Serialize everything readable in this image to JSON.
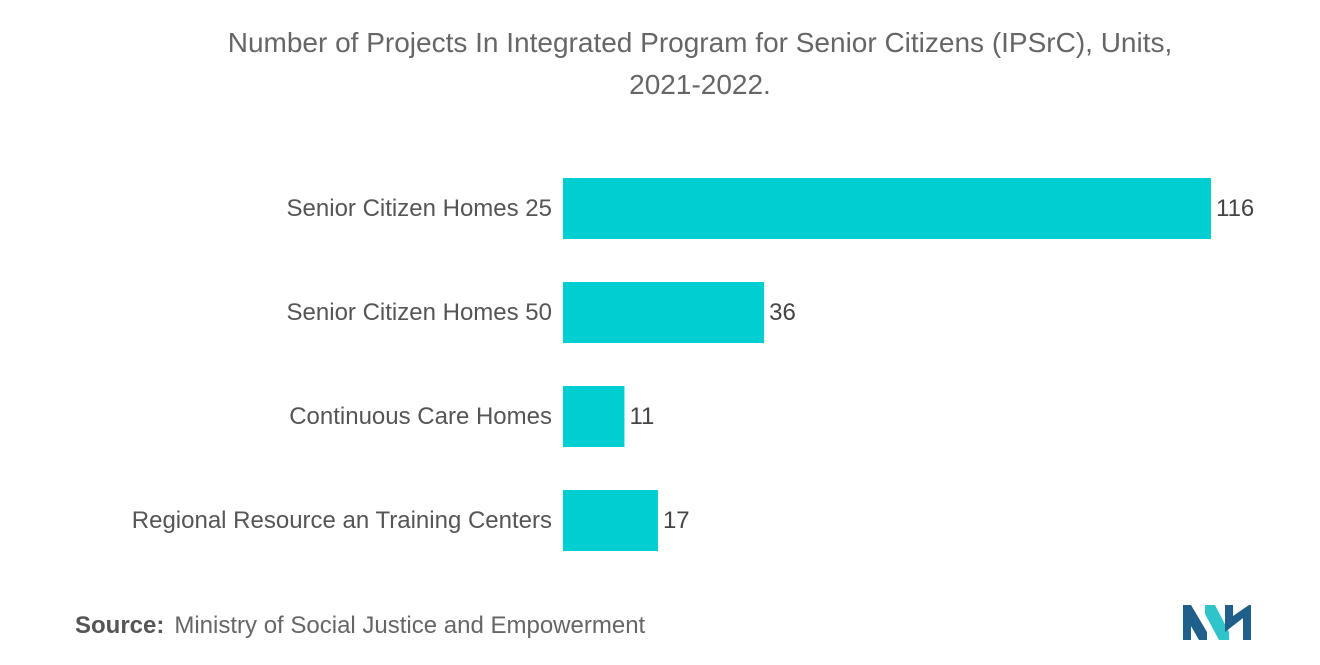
{
  "chart_data": {
    "type": "bar",
    "orientation": "horizontal",
    "title_line1": "Number of Projects In Integrated Program for Senior Citizens (IPSrC), Units,",
    "title_line2": "2021-2022.",
    "categories": [
      "Senior Citizen Homes 25",
      "Senior Citizen Homes 50",
      "Continuous Care Homes",
      "Regional Resource an Training Centers"
    ],
    "values": [
      116,
      36,
      11,
      17
    ],
    "data_labels": [
      "116",
      "36",
      "11",
      "17"
    ],
    "bar_color": "#00CED1",
    "xlim": [
      0,
      116
    ],
    "grid": false,
    "legend": "none"
  },
  "footer": {
    "source_label": "Source:",
    "source_text": "Ministry of Social Justice and Empowerment"
  },
  "colors": {
    "logo_dark": "#1F5F8A",
    "logo_light": "#2EC4C9"
  }
}
